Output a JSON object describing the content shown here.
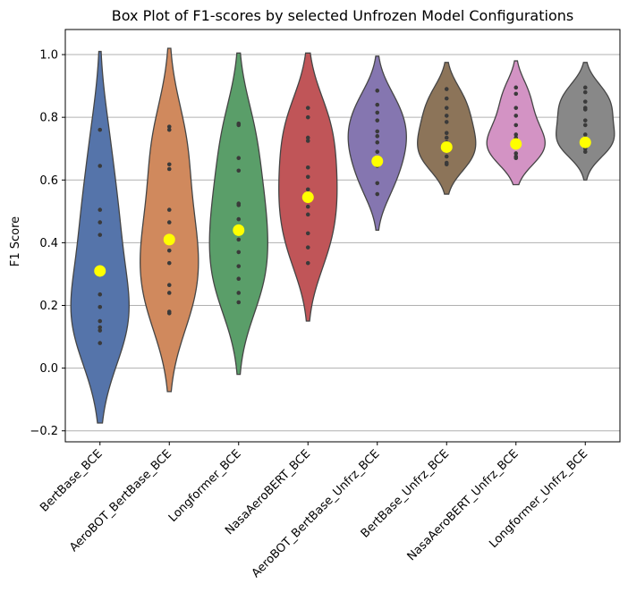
{
  "chart_data": {
    "type": "violin",
    "title": "Box Plot of F1-scores by selected Unfrozen Model Configurations",
    "xlabel": "",
    "ylabel": "F1 Score",
    "ylim": [
      -0.235,
      1.08
    ],
    "yticks": [
      -0.2,
      0.0,
      0.2,
      0.4,
      0.6,
      0.8,
      1.0
    ],
    "ytick_labels": [
      "−0.2",
      "0.0",
      "0.2",
      "0.4",
      "0.6",
      "0.8",
      "1.0"
    ],
    "grid": "horizontal",
    "mean_marker_color": "#ffff00",
    "point_color": "#3a3a3a",
    "categories": [
      "BertBase_BCE",
      "AeroBOT_BertBase_BCE",
      "Longformer_BCE",
      "NasaAeroBERT_BCE",
      "AeroBOT_BertBase_Unfrz_BCE",
      "BertBase_Unfrz_BCE",
      "NasaAeroBERT_Unfrz_BCE",
      "Longformer_Unfrz_BCE"
    ],
    "series": [
      {
        "color": "#5574aa",
        "points": [
          0.08,
          0.12,
          0.13,
          0.15,
          0.195,
          0.235,
          0.3,
          0.425,
          0.465,
          0.505,
          0.645,
          0.76
        ],
        "mean": 0.31,
        "range": [
          -0.175,
          1.01
        ]
      },
      {
        "color": "#d0895d",
        "points": [
          0.175,
          0.18,
          0.24,
          0.265,
          0.335,
          0.375,
          0.405,
          0.465,
          0.505,
          0.635,
          0.65,
          0.76,
          0.77
        ],
        "mean": 0.41,
        "range": [
          -0.075,
          1.02
        ]
      },
      {
        "color": "#5a9e69",
        "points": [
          0.21,
          0.24,
          0.285,
          0.325,
          0.37,
          0.41,
          0.475,
          0.52,
          0.525,
          0.63,
          0.67,
          0.775,
          0.78
        ],
        "mean": 0.44,
        "range": [
          -0.02,
          1.005
        ]
      },
      {
        "color": "#c05558",
        "points": [
          0.335,
          0.385,
          0.43,
          0.49,
          0.515,
          0.57,
          0.61,
          0.64,
          0.725,
          0.735,
          0.8,
          0.83
        ],
        "mean": 0.545,
        "range": [
          0.15,
          1.005
        ]
      },
      {
        "color": "#8576b0",
        "points": [
          0.555,
          0.59,
          0.645,
          0.65,
          0.69,
          0.72,
          0.74,
          0.755,
          0.79,
          0.815,
          0.84,
          0.885
        ],
        "mean": 0.66,
        "range": [
          0.44,
          0.995
        ]
      },
      {
        "color": "#8c7459",
        "points": [
          0.65,
          0.655,
          0.675,
          0.695,
          0.72,
          0.735,
          0.75,
          0.785,
          0.805,
          0.83,
          0.86,
          0.89
        ],
        "mean": 0.705,
        "range": [
          0.555,
          0.975
        ]
      },
      {
        "color": "#d393c4",
        "points": [
          0.67,
          0.675,
          0.685,
          0.705,
          0.72,
          0.735,
          0.745,
          0.775,
          0.805,
          0.83,
          0.875,
          0.895
        ],
        "mean": 0.715,
        "range": [
          0.585,
          0.98
        ]
      },
      {
        "color": "#888888",
        "points": [
          0.69,
          0.7,
          0.72,
          0.73,
          0.745,
          0.775,
          0.79,
          0.825,
          0.83,
          0.85,
          0.88,
          0.895
        ],
        "mean": 0.72,
        "range": [
          0.6,
          0.975
        ]
      }
    ]
  }
}
